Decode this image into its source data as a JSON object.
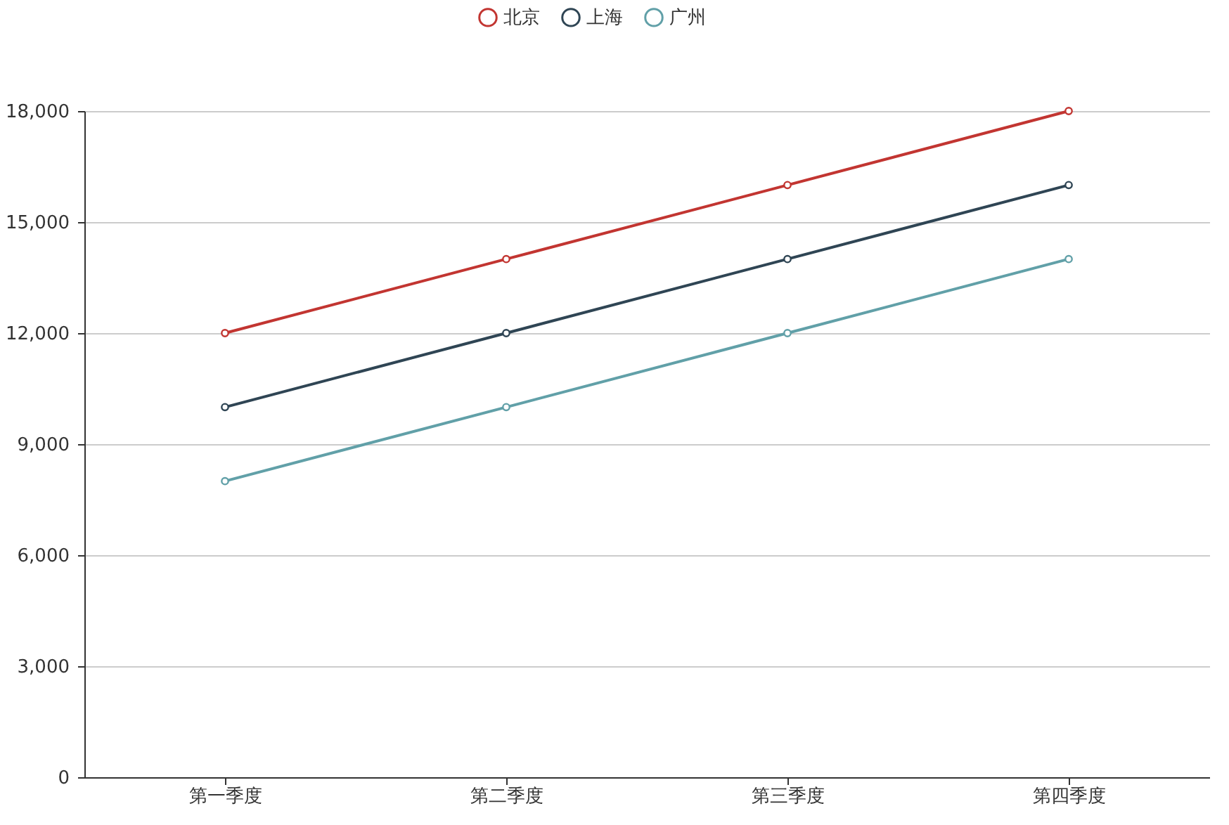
{
  "chart_data": {
    "type": "line",
    "categories": [
      "第一季度",
      "第二季度",
      "第三季度",
      "第四季度"
    ],
    "series": [
      {
        "name": "北京",
        "color": "#c23531",
        "values": [
          12000,
          14000,
          16000,
          18000
        ]
      },
      {
        "name": "上海",
        "color": "#2f4554",
        "values": [
          10000,
          12000,
          14000,
          16000
        ]
      },
      {
        "name": "广州",
        "color": "#61a0a8",
        "values": [
          8000,
          10000,
          12000,
          14000
        ]
      }
    ],
    "ylim": [
      0,
      18000
    ],
    "yticks": [
      0,
      {
        "value": 3000,
        "label": "3,000"
      },
      {
        "value": 6000,
        "label": "6,000"
      },
      {
        "value": 9000,
        "label": "9,000"
      },
      {
        "value": 12000,
        "label": "12,000"
      },
      {
        "value": 15000,
        "label": "15,000"
      },
      {
        "value": 18000,
        "label": "18,000"
      }
    ],
    "grid": "y",
    "legend": "top",
    "marker": "circle",
    "line_style": "solid"
  }
}
